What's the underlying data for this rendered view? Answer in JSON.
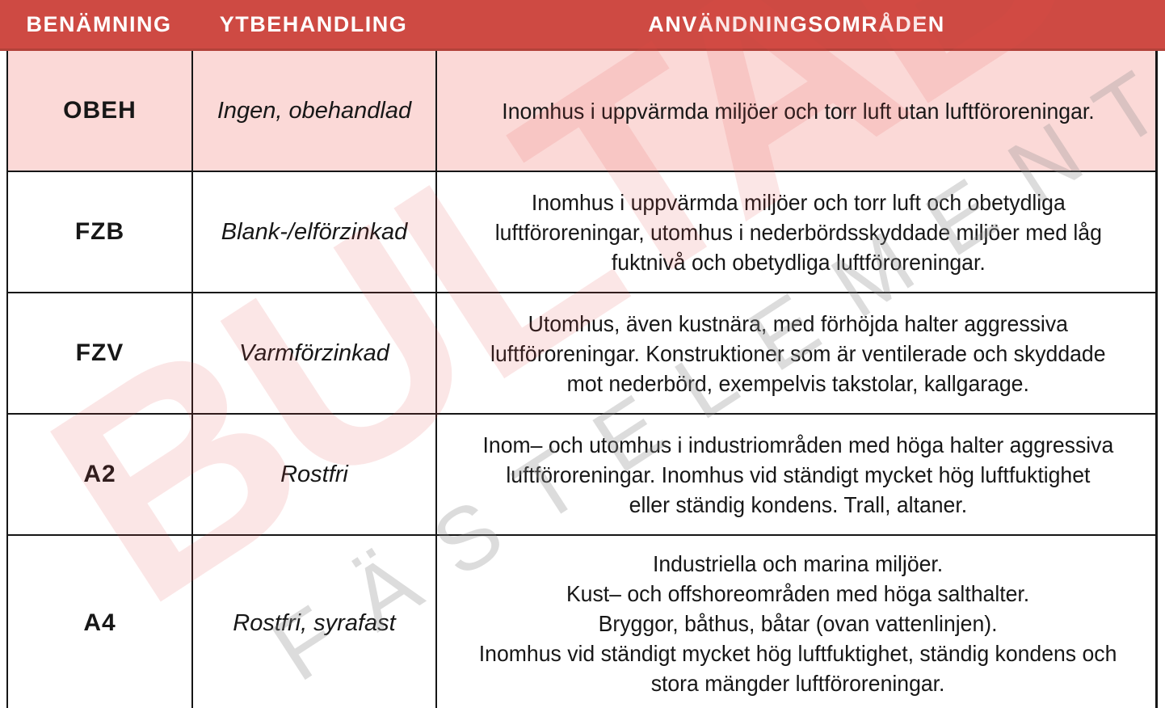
{
  "table": {
    "columns": [
      {
        "key": "benamning",
        "label": "BENÄMNING"
      },
      {
        "key": "ytbehandling",
        "label": "YTBEHANDLING"
      },
      {
        "key": "anvandningsomraden",
        "label": "ANVÄNDNINGSOMRÅDEN"
      }
    ],
    "rows": [
      {
        "highlighted": true,
        "benamning": "OBEH",
        "ytbehandling": "Ingen, obehandlad",
        "anvandningsomraden": [
          "Inomhus i uppvärmda miljöer och torr luft utan luftföroreningar."
        ]
      },
      {
        "highlighted": false,
        "benamning": "FZB",
        "ytbehandling": "Blank-/elförzinkad",
        "anvandningsomraden": [
          "Inomhus i uppvärmda miljöer och torr luft och obetydliga",
          "luftföroreningar, utomhus i nederbördsskyddade miljöer med låg",
          "fuktnivå och obetydliga luftföroreningar."
        ]
      },
      {
        "highlighted": false,
        "benamning": "FZV",
        "ytbehandling": "Varmförzinkad",
        "anvandningsomraden": [
          "Utomhus, även kustnära, med förhöjda halter aggressiva",
          "luftföroreningar. Konstruktioner som är ventilerade och skyddade",
          "mot nederbörd, exempelvis takstolar, kallgarage."
        ]
      },
      {
        "highlighted": false,
        "benamning": "A2",
        "ytbehandling": "Rostfri",
        "anvandningsomraden": [
          "Inom– och utomhus i industriområden med höga halter aggressiva",
          "luftföroreningar. Inomhus vid ständigt mycket hög luftfuktighet",
          "eller ständig kondens. Trall, altaner."
        ]
      },
      {
        "highlighted": false,
        "benamning": "A4",
        "ytbehandling": "Rostfri, syrafast",
        "anvandningsomraden": [
          "Industriella och marina miljöer.",
          "Kust– och offshoreområden med höga salthalter.",
          "Bryggor, båthus, båtar (ovan vattenlinjen).",
          "Inomhus vid ständigt mycket hög luftfuktighet, ständig kondens och",
          "stora mängder luftföroreningar."
        ]
      }
    ]
  },
  "watermark": {
    "brand": "BULTAB",
    "subtitle": "FÄSTELEMENT"
  },
  "colors": {
    "header_background": "#ce4a43",
    "header_text": "#ffffff",
    "highlight_row_background": "#fbd9d7",
    "border": "#161616",
    "watermark_brand": "#e84a4a",
    "watermark_subtitle": "#8f8f8f"
  }
}
